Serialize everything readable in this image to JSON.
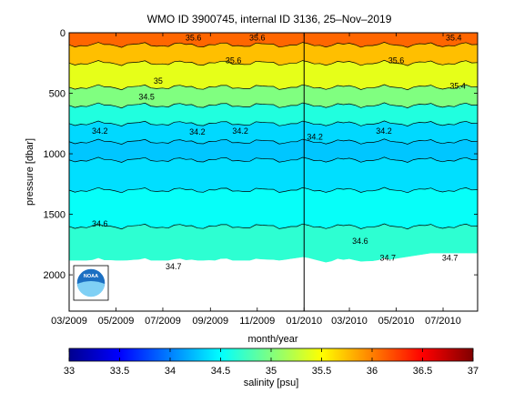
{
  "chart_data": {
    "type": "heatmap",
    "title": "WMO ID 3900745, internal ID 3136, 25–Nov–2019",
    "xlabel": "month/year",
    "ylabel": "pressure [dbar]",
    "x_ticks": [
      "03/2009",
      "05/2009",
      "07/2009",
      "09/2009",
      "11/2009",
      "01/2010",
      "03/2010",
      "05/2010",
      "07/2010"
    ],
    "x_range": [
      "2009-03-01",
      "2010-08-15"
    ],
    "y_ticks": [
      0,
      500,
      1000,
      1500,
      2000
    ],
    "y_range": [
      0,
      2300
    ],
    "y_reversed": true,
    "year_divider": "2010-01-01",
    "colorbar": {
      "label": "salinity [psu]",
      "range": [
        33,
        37
      ],
      "ticks": [
        33,
        33.5,
        34,
        34.5,
        35,
        35.5,
        36,
        36.5,
        37
      ],
      "colormap": "jet"
    },
    "profile_depth_limit": [
      {
        "date": "2009-03-01",
        "pressure": 1880
      },
      {
        "date": "2009-12-01",
        "pressure": 1880
      },
      {
        "date": "2010-01-01",
        "pressure": 1850
      },
      {
        "date": "2010-02-01",
        "pressure": 1900
      },
      {
        "date": "2010-04-15",
        "pressure": 1880
      },
      {
        "date": "2010-06-15",
        "pressure": 1820
      },
      {
        "date": "2010-08-15",
        "pressure": 1820
      }
    ],
    "salinity_profile_typical": [
      {
        "pressure": 0,
        "salinity": 36.3
      },
      {
        "pressure": 100,
        "salinity": 35.9
      },
      {
        "pressure": 250,
        "salinity": 35.6
      },
      {
        "pressure": 450,
        "salinity": 35.2
      },
      {
        "pressure": 600,
        "salinity": 34.8
      },
      {
        "pressure": 750,
        "salinity": 34.45
      },
      {
        "pressure": 900,
        "salinity": 34.25
      },
      {
        "pressure": 1050,
        "salinity": 34.3
      },
      {
        "pressure": 1300,
        "salinity": 34.45
      },
      {
        "pressure": 1600,
        "salinity": 34.6
      },
      {
        "pressure": 1880,
        "salinity": 34.75
      }
    ],
    "contour_labels": [
      {
        "text": "35.6",
        "date": "2009-08-10",
        "pressure": 40
      },
      {
        "text": "35.6",
        "date": "2009-11-01",
        "pressure": 40
      },
      {
        "text": "35.6",
        "date": "2009-10-01",
        "pressure": 230
      },
      {
        "text": "35.6",
        "date": "2010-05-01",
        "pressure": 230
      },
      {
        "text": "35.4",
        "date": "2010-07-15",
        "pressure": 40
      },
      {
        "text": "35.4",
        "date": "2010-07-20",
        "pressure": 440
      },
      {
        "text": "35",
        "date": "2009-06-25",
        "pressure": 400
      },
      {
        "text": "34.5",
        "date": "2009-06-10",
        "pressure": 530
      },
      {
        "text": "34.2",
        "date": "2009-04-10",
        "pressure": 810
      },
      {
        "text": "34.2",
        "date": "2009-08-15",
        "pressure": 820
      },
      {
        "text": "34.2",
        "date": "2009-10-10",
        "pressure": 810
      },
      {
        "text": "34.2",
        "date": "2010-01-15",
        "pressure": 860
      },
      {
        "text": "34.2",
        "date": "2010-04-15",
        "pressure": 810
      },
      {
        "text": "34.6",
        "date": "2009-04-10",
        "pressure": 1580
      },
      {
        "text": "34.6",
        "date": "2010-03-15",
        "pressure": 1720
      },
      {
        "text": "34.7",
        "date": "2009-07-15",
        "pressure": 1930
      },
      {
        "text": "34.7",
        "date": "2010-04-20",
        "pressure": 1860
      },
      {
        "text": "34.7",
        "date": "2010-07-10",
        "pressure": 1860
      }
    ],
    "logo": "noaa-logo"
  }
}
